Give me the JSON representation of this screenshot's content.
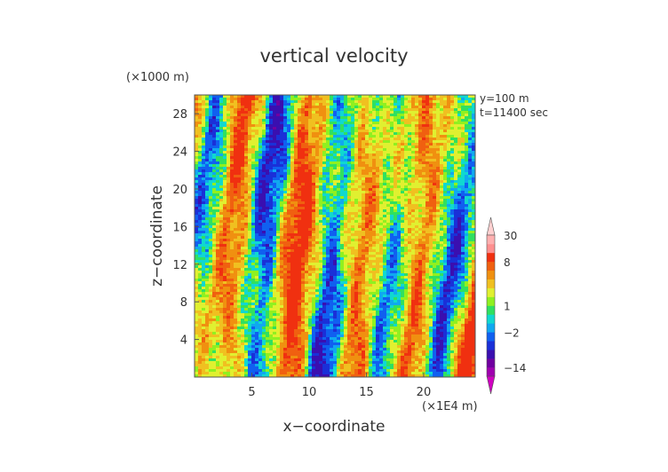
{
  "chart_data": {
    "type": "heatmap",
    "title": "vertical velocity",
    "xlabel": "x−coordinate",
    "ylabel": "z−coordinate",
    "x_unit": "(×1E4 m)",
    "y_unit": "(×1000 m)",
    "annotations": [
      "y=100 m",
      "t=11400 sec"
    ],
    "xlim": [
      0,
      24.5
    ],
    "ylim": [
      0,
      30
    ],
    "x_ticks": [
      5,
      10,
      15,
      20
    ],
    "y_ticks": [
      4,
      8,
      12,
      16,
      20,
      24,
      28
    ],
    "colorbar": {
      "tick_labels": [
        "30",
        "8",
        "1",
        "−2",
        "−14"
      ],
      "tick_values": [
        30,
        8,
        1,
        -2,
        -14
      ],
      "levels": [
        -30,
        -22,
        -14,
        -8,
        -5,
        -3.5,
        -2,
        -1,
        0,
        1,
        2,
        3.5,
        5,
        6.5,
        8,
        14,
        22,
        30
      ],
      "colors": [
        "#d000c0",
        "#a000b0",
        "#7000a0",
        "#3a0fb0",
        "#1a30d8",
        "#1060f0",
        "#10a8f0",
        "#10d8d0",
        "#30e060",
        "#90f020",
        "#e0f030",
        "#f0c020",
        "#f09010",
        "#f06010",
        "#f03010",
        "#ff9090",
        "#ffb0b0",
        "#ffd0d0"
      ],
      "extend": "both"
    }
  }
}
